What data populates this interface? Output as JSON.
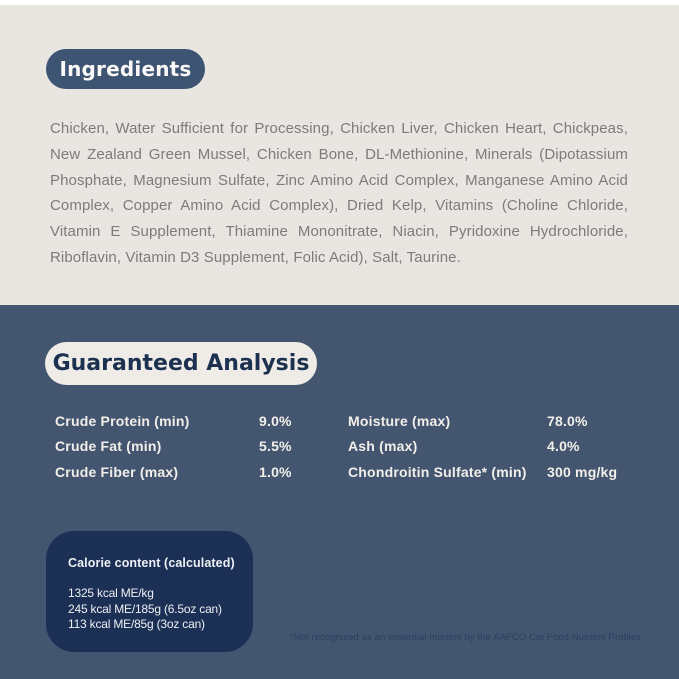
{
  "ingredients": {
    "badge_label": "Ingredients",
    "text": "Chicken, Water Sufficient for Processing, Chicken Liver, Chicken Heart, Chickpeas, New Zealand Green Mussel, Chicken Bone, DL-Methionine, Minerals (Dipotassium Phosphate, Magnesium Sulfate, Zinc Amino Acid Complex, Manganese Amino Acid Complex, Copper Amino Acid Complex), Dried Kelp, Vitamins (Choline Chloride, Vitamin E Supplement, Thiamine Mononitrate, Niacin, Pyridoxine Hydrochloride, Riboflavin, Vitamin D3 Supplement, Folic Acid), Salt, Taurine."
  },
  "guaranteed_analysis": {
    "badge_label": "Guaranteed Analysis",
    "left_rows": [
      {
        "label": "Crude Protein (min)",
        "value": "9.0%"
      },
      {
        "label": "Crude Fat (min)",
        "value": "5.5%"
      },
      {
        "label": "Crude Fiber (max)",
        "value": "1.0%"
      }
    ],
    "right_rows": [
      {
        "label": "Moisture (max)",
        "value": "78.0%"
      },
      {
        "label": "Ash (max)",
        "value": "4.0%"
      },
      {
        "label": "Chondroitin Sulfate* (min)",
        "value": "300 mg/kg"
      }
    ]
  },
  "calorie_content": {
    "title": "Calorie content (calculated)",
    "lines": [
      "1325 kcal ME/kg",
      "245 kcal ME/185g (6.5oz can)",
      "113 kcal ME/85g (3oz can)"
    ]
  },
  "footnote": "*Not recognized as an essential nutrient by the AAFCO Cat Food Nutrient Profiles",
  "colors": {
    "top_background": "#E9E5E0",
    "bottom_background": "#44566F",
    "ingredients_badge": "#3D5472",
    "analysis_badge": "#EFECE7",
    "calorie_box": "#1B3054",
    "body_text": "#7C7C7C",
    "footnote_text": "#2A4062"
  }
}
